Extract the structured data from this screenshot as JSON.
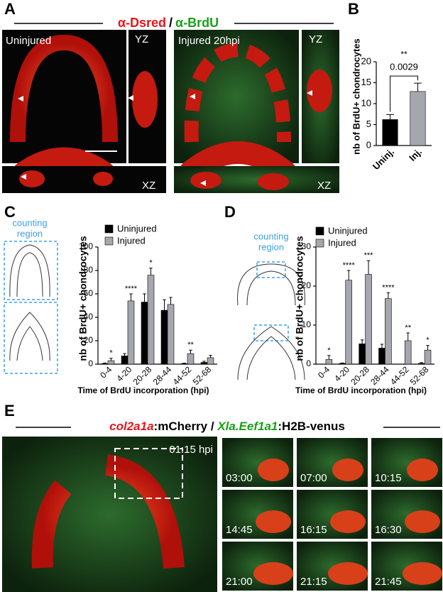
{
  "labels": {
    "a": "A",
    "b": "B",
    "c": "C",
    "d": "D",
    "e": "E"
  },
  "panel_a": {
    "stain1": "α-Dsred",
    "sep": "/",
    "stain2": "α-BrdU",
    "left_title": "Uninjured",
    "right_title": "Injured 20hpi",
    "views": [
      "YZ",
      "XZ",
      "YZ",
      "XZ"
    ]
  },
  "counting_region": [
    [
      "counting",
      "region"
    ],
    [
      "counting",
      "region"
    ]
  ],
  "panel_e": {
    "title_parts": [
      "col2a1a",
      ":mCherry",
      " / ",
      "Xla.Eef1a1",
      ":H2B-venus"
    ],
    "main_time": "01:15 hpi",
    "frames": [
      "03:00",
      "07:00",
      "10:15",
      "14:45",
      "16:15",
      "16:30",
      "21:00",
      "21:15",
      "21:45"
    ]
  },
  "chart_data": [
    {
      "type": "bar",
      "ylabel": "nb of BrdU+ chondrocytes",
      "categories": [
        "Uninj.",
        "Inj."
      ],
      "values": [
        6.2,
        12.9
      ],
      "errors": [
        1.2,
        2.0
      ],
      "colors": [
        "#000000",
        "#a6a6ae"
      ],
      "ylim": [
        0,
        20
      ],
      "yticks": [
        0,
        5,
        10,
        15,
        20
      ],
      "annotations": [
        "**",
        "0.0029"
      ]
    },
    {
      "type": "bar",
      "ylabel": "nb of BrdU+ chondrocytes",
      "xlabel": "Time of BrdU incorporation (hpi)",
      "categories": [
        "0-4",
        "4-20",
        "20-28",
        "28-44",
        "44-52",
        "52-68"
      ],
      "series": [
        {
          "name": "Uninjured",
          "color": "#000000",
          "values": [
            0.5,
            7,
            53,
            46,
            0.5,
            1.5
          ],
          "errors": [
            0.5,
            2,
            7,
            9,
            0.3,
            1
          ]
        },
        {
          "name": "Injured",
          "color": "#a6a6ae",
          "values": [
            3,
            54,
            76,
            51,
            9,
            5.5
          ],
          "errors": [
            2,
            6,
            6,
            6,
            3,
            2
          ]
        }
      ],
      "significance": [
        "*",
        "****",
        "*",
        null,
        "**",
        null
      ],
      "ylim": [
        0,
        100
      ],
      "yticks": [
        0,
        20,
        40,
        60,
        80,
        100
      ]
    },
    {
      "type": "bar",
      "ylabel": "nb of BrdU+ chondrocytes",
      "xlabel": "Time of BrdU incorporation (hpi)",
      "categories": [
        "0-4",
        "4-20",
        "20-28",
        "28-44",
        "44-52",
        "52-68"
      ],
      "series": [
        {
          "name": "Uninjured",
          "color": "#000000",
          "values": [
            0,
            0.2,
            5.2,
            4.1,
            0,
            0.2
          ],
          "errors": [
            0,
            0.1,
            1,
            1,
            0,
            0.2
          ]
        },
        {
          "name": "Injured",
          "color": "#a6a6ae",
          "values": [
            1.2,
            21.5,
            23,
            16.8,
            6,
            3.6
          ],
          "errors": [
            1,
            2.5,
            3.5,
            1.5,
            2,
            1.2
          ]
        }
      ],
      "significance": [
        "*",
        "****",
        "***",
        "****",
        "**",
        "*"
      ],
      "ylim": [
        0,
        30
      ],
      "yticks": [
        0,
        10,
        20,
        30
      ]
    }
  ]
}
